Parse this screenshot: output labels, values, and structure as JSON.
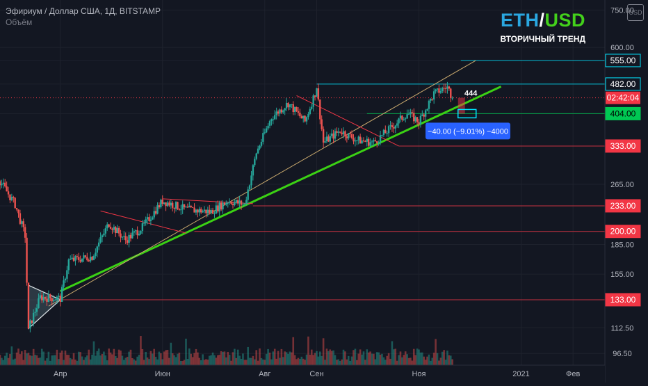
{
  "header": {
    "title": "Эфириум / Доллар США, 1Д, BITSTAMP",
    "subtitle": "Объём"
  },
  "logo": {
    "eth": "ETH",
    "slash": "/",
    "usd": "USD",
    "trend": "ВТОРИЧНЫЙ ТРЕНД"
  },
  "currency_badge": "USD",
  "colors": {
    "background": "#131722",
    "up_candle": "#26a69a",
    "down_candle": "#ef5350",
    "trendline": "#3bd114",
    "channel_line": "#c9a96e",
    "level_line": "#f23645",
    "label_red": "#f23645",
    "label_cyan": "#00e5ff",
    "label_green": "#00c853",
    "measure_box": "#2962ff"
  },
  "chart_data": {
    "type": "candlestick",
    "title": "Эфириум / Доллар США, 1Д, BITSTAMP",
    "y_scale": "log",
    "ylim": [
      90,
      780
    ],
    "x_range": [
      "2020-02-25",
      "2021-02-20"
    ],
    "y_ticks": [
      "750.00",
      "600.00",
      "555.00",
      "482.00",
      "404.00",
      "333.00",
      "265.00",
      "233.00",
      "200.00",
      "185.00",
      "155.00",
      "133.00",
      "112.50",
      "96.50"
    ],
    "x_ticks": [
      {
        "date": "2020-04-01",
        "label": "Апр"
      },
      {
        "date": "2020-06-01",
        "label": "Июн"
      },
      {
        "date": "2020-08-01",
        "label": "Авг"
      },
      {
        "date": "2020-09-01",
        "label": "Сен"
      },
      {
        "date": "2020-11-01",
        "label": "Ноя"
      },
      {
        "date": "2021-01-01",
        "label": "2021"
      },
      {
        "date": "2021-02-01",
        "label": "Фев"
      }
    ],
    "price_path": [
      {
        "date": "2020-02-25",
        "price": 270
      },
      {
        "date": "2020-03-05",
        "price": 235
      },
      {
        "date": "2020-03-11",
        "price": 195
      },
      {
        "date": "2020-03-13",
        "price": 112
      },
      {
        "date": "2020-03-20",
        "price": 135
      },
      {
        "date": "2020-04-01",
        "price": 134
      },
      {
        "date": "2020-04-06",
        "price": 168
      },
      {
        "date": "2020-04-20",
        "price": 172
      },
      {
        "date": "2020-04-30",
        "price": 210
      },
      {
        "date": "2020-05-10",
        "price": 190
      },
      {
        "date": "2020-05-20",
        "price": 205
      },
      {
        "date": "2020-06-01",
        "price": 240
      },
      {
        "date": "2020-06-15",
        "price": 228
      },
      {
        "date": "2020-06-30",
        "price": 225
      },
      {
        "date": "2020-07-10",
        "price": 240
      },
      {
        "date": "2020-07-20",
        "price": 235
      },
      {
        "date": "2020-07-27",
        "price": 320
      },
      {
        "date": "2020-08-05",
        "price": 395
      },
      {
        "date": "2020-08-15",
        "price": 430
      },
      {
        "date": "2020-08-25",
        "price": 385
      },
      {
        "date": "2020-09-01",
        "price": 470
      },
      {
        "date": "2020-09-05",
        "price": 340
      },
      {
        "date": "2020-09-15",
        "price": 365
      },
      {
        "date": "2020-09-25",
        "price": 345
      },
      {
        "date": "2020-10-05",
        "price": 340
      },
      {
        "date": "2020-10-15",
        "price": 370
      },
      {
        "date": "2020-10-25",
        "price": 405
      },
      {
        "date": "2020-11-01",
        "price": 385
      },
      {
        "date": "2020-11-10",
        "price": 455
      },
      {
        "date": "2020-11-18",
        "price": 475
      },
      {
        "date": "2020-11-21",
        "price": 444
      }
    ],
    "horizontal_levels": [
      {
        "value": 555,
        "label": "555.00",
        "style": "cyan",
        "start": "2020-11-26"
      },
      {
        "value": 482,
        "label": "482.00",
        "style": "cyan",
        "start": "2020-09-01"
      },
      {
        "value": 404,
        "label": "404.00",
        "style": "green",
        "start": "2020-10-01"
      },
      {
        "value": 333,
        "label": "333.00",
        "style": "red",
        "start": "2020-10-20"
      },
      {
        "value": 233,
        "label": "233.00",
        "style": "red",
        "start": "2020-07-25"
      },
      {
        "value": 200,
        "label": "200.00",
        "style": "red",
        "start": "2020-06-20"
      },
      {
        "value": 133,
        "label": "133.00",
        "style": "red",
        "start": "2020-03-30"
      }
    ],
    "current_price_line": {
      "value": 444,
      "time_label": "02:42:04"
    },
    "price_tag": "444",
    "trendlines": [
      {
        "name": "main",
        "start": {
          "date": "2020-04-01",
          "price": 140
        },
        "end": {
          "date": "2020-12-20",
          "price": 475
        }
      },
      {
        "name": "channel",
        "start": {
          "date": "2020-03-25",
          "price": 128
        },
        "end": {
          "date": "2020-12-05",
          "price": 555
        }
      },
      {
        "name": "resistance-1",
        "start": {
          "date": "2020-04-25",
          "price": 226
        },
        "end": {
          "date": "2020-06-15",
          "price": 198
        }
      },
      {
        "name": "resistance-2",
        "start": {
          "date": "2020-06-01",
          "price": 243
        },
        "end": {
          "date": "2020-07-25",
          "price": 236
        }
      },
      {
        "name": "resistance-3",
        "start": {
          "date": "2020-08-20",
          "price": 450
        },
        "end": {
          "date": "2020-10-20",
          "price": 333
        }
      }
    ],
    "triangle": [
      {
        "date": "2020-03-13",
        "price": 145
      },
      {
        "date": "2020-04-01",
        "price": 133
      },
      {
        "date": "2020-03-13",
        "price": 112
      }
    ],
    "measurement": {
      "label": "−40.00 (−9.01%) −4000",
      "from_price": 444,
      "to_price": 404
    }
  }
}
